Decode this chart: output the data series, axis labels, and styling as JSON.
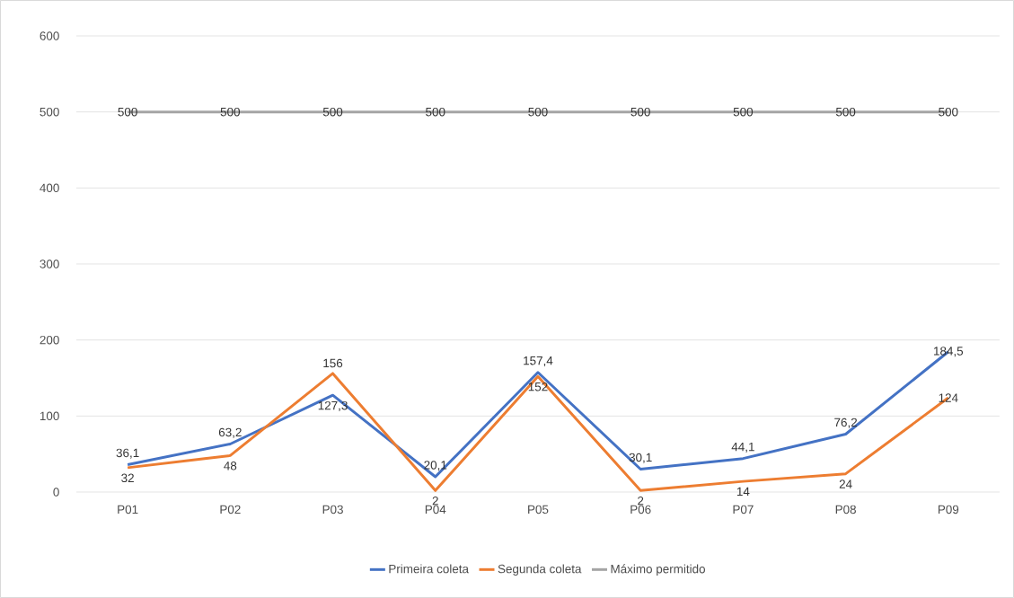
{
  "chart_data": {
    "type": "line",
    "categories": [
      "P01",
      "P02",
      "P03",
      "P04",
      "P05",
      "P06",
      "P07",
      "P08",
      "P09"
    ],
    "series": [
      {
        "name": "Primeira coleta",
        "color": "#4472c4",
        "values": [
          36.1,
          63.2,
          127.3,
          20.1,
          157.4,
          30.1,
          44.1,
          76.2,
          184.5
        ],
        "value_labels": [
          "36,1",
          "63,2",
          "127,3",
          "20,1",
          "157,4",
          "30,1",
          "44,1",
          "76,2",
          "184,5"
        ]
      },
      {
        "name": "Segunda coleta",
        "color": "#ed7d31",
        "values": [
          32,
          48,
          156,
          2,
          152,
          2,
          14,
          24,
          124
        ],
        "value_labels": [
          "32",
          "48",
          "156",
          "2",
          "152",
          "2",
          "14",
          "24",
          "124"
        ]
      },
      {
        "name": "Máximo permitido",
        "color": "#a5a5a5",
        "values": [
          500,
          500,
          500,
          500,
          500,
          500,
          500,
          500,
          500
        ],
        "value_labels": [
          "500",
          "500",
          "500",
          "500",
          "500",
          "500",
          "500",
          "500",
          "500"
        ]
      }
    ],
    "ylim": [
      0,
      600
    ],
    "yticks": [
      0,
      100,
      200,
      300,
      400,
      500,
      600
    ],
    "grid": "y",
    "legend": "bottom"
  }
}
